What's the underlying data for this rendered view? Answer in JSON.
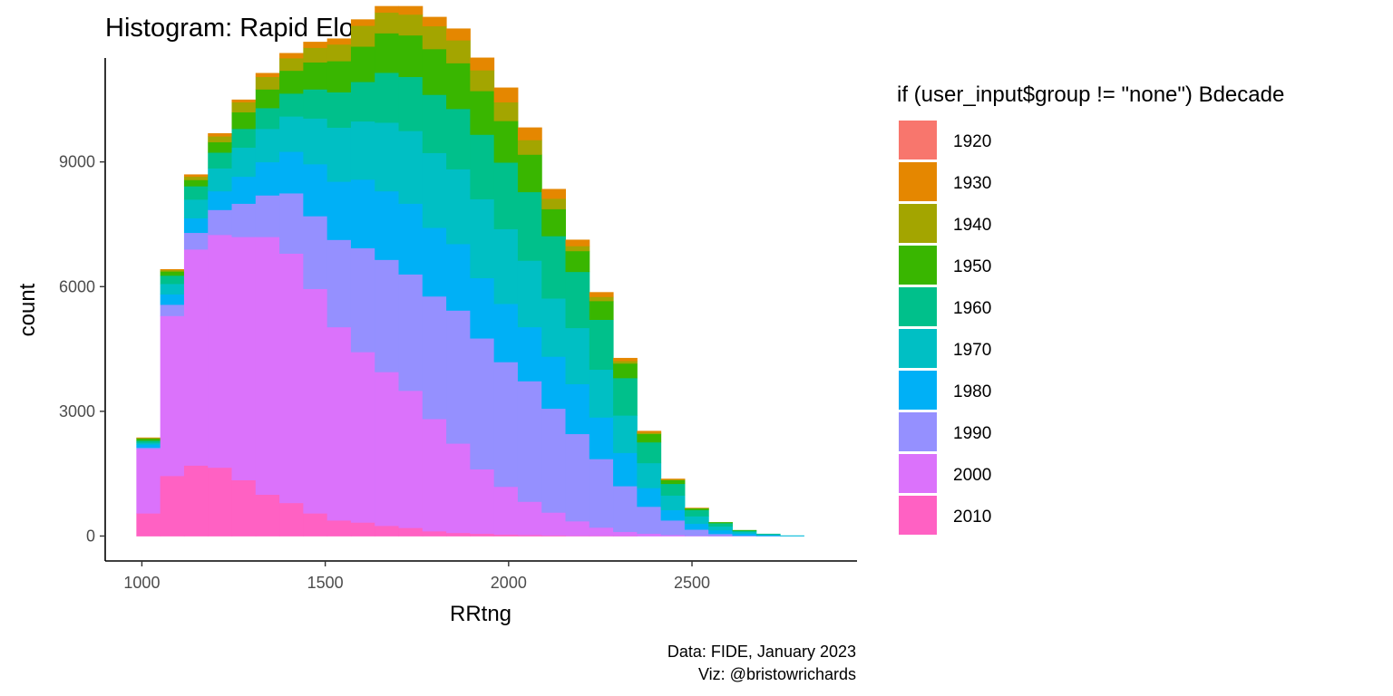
{
  "chart_data": {
    "type": "bar",
    "subtype": "stacked-histogram",
    "title": "Histogram: Rapid Elo",
    "xlabel": "RRtng",
    "ylabel": "count",
    "xlim": [
      900,
      2950
    ],
    "ylim": [
      -600,
      11500
    ],
    "xticks": [
      1000,
      1500,
      2000,
      2500
    ],
    "yticks": [
      0,
      3000,
      6000,
      9000
    ],
    "grid": false,
    "legend_position": "right",
    "legend_title": "if (user_input$group != \"none\") Bdecade",
    "bin_starts": [
      985,
      1050,
      1115,
      1180,
      1245,
      1310,
      1375,
      1440,
      1505,
      1570,
      1635,
      1700,
      1765,
      1830,
      1895,
      1960,
      2025,
      2090,
      2155,
      2220,
      2285,
      2350,
      2415,
      2480,
      2545,
      2610,
      2675,
      2740
    ],
    "bin_width": 65,
    "series": [
      {
        "name": "2010",
        "color": "#FF61C3",
        "values": [
          550,
          1450,
          1700,
          1650,
          1350,
          1000,
          800,
          550,
          380,
          330,
          250,
          200,
          120,
          80,
          60,
          40,
          30,
          20,
          10,
          8,
          5,
          0,
          0,
          0,
          0,
          0,
          0,
          0
        ]
      },
      {
        "name": "2000",
        "color": "#DB72FB",
        "values": [
          1550,
          3850,
          5200,
          5600,
          5850,
          6200,
          6000,
          5400,
          4650,
          4100,
          3700,
          3300,
          2700,
          2150,
          1550,
          1150,
          800,
          550,
          350,
          200,
          100,
          60,
          30,
          10,
          5,
          0,
          0,
          0
        ]
      },
      {
        "name": "1990",
        "color": "#9590FF",
        "values": [
          30,
          270,
          400,
          600,
          800,
          1000,
          1450,
          1750,
          2100,
          2500,
          2700,
          2800,
          2950,
          3200,
          3150,
          3000,
          2900,
          2500,
          2100,
          1650,
          1100,
          650,
          350,
          150,
          50,
          15,
          5,
          0
        ]
      },
      {
        "name": "1980",
        "color": "#00B0F6",
        "values": [
          80,
          250,
          350,
          450,
          650,
          800,
          1000,
          1250,
          1400,
          1650,
          1650,
          1700,
          1650,
          1600,
          1450,
          1400,
          1300,
          1250,
          1200,
          1000,
          800,
          450,
          250,
          140,
          90,
          50,
          20,
          10
        ]
      },
      {
        "name": "1970",
        "color": "#00BFC4",
        "values": [
          40,
          250,
          450,
          550,
          700,
          800,
          850,
          1100,
          1300,
          1400,
          1650,
          1750,
          1800,
          1800,
          1900,
          1800,
          1600,
          1400,
          1350,
          1150,
          900,
          600,
          350,
          180,
          90,
          40,
          20,
          5
        ]
      },
      {
        "name": "1960",
        "color": "#00C08B",
        "values": [
          50,
          200,
          320,
          380,
          450,
          500,
          550,
          700,
          850,
          950,
          1200,
          1300,
          1400,
          1450,
          1550,
          1600,
          1650,
          1500,
          1350,
          1200,
          900,
          500,
          280,
          150,
          80,
          30,
          10,
          0
        ]
      },
      {
        "name": "1950",
        "color": "#39B600",
        "values": [
          50,
          100,
          150,
          250,
          400,
          450,
          550,
          650,
          750,
          850,
          950,
          1000,
          1100,
          1100,
          1050,
          1000,
          900,
          650,
          500,
          450,
          350,
          200,
          90,
          40,
          20,
          10,
          0,
          0
        ]
      },
      {
        "name": "1940",
        "color": "#A3A500",
        "values": [
          15,
          35,
          80,
          140,
          240,
          300,
          300,
          350,
          400,
          500,
          500,
          500,
          550,
          550,
          500,
          450,
          350,
          250,
          120,
          100,
          60,
          30,
          15,
          5,
          0,
          0,
          0,
          0
        ]
      },
      {
        "name": "1930",
        "color": "#E58700",
        "values": [
          5,
          15,
          50,
          70,
          60,
          90,
          120,
          140,
          140,
          150,
          150,
          200,
          220,
          280,
          300,
          350,
          300,
          230,
          150,
          110,
          70,
          40,
          15,
          5,
          0,
          0,
          0,
          0
        ]
      },
      {
        "name": "1920",
        "color": "#F8766D",
        "values": [
          0,
          0,
          0,
          0,
          0,
          0,
          0,
          0,
          0,
          0,
          0,
          0,
          0,
          0,
          0,
          0,
          0,
          0,
          0,
          0,
          0,
          0,
          0,
          0,
          0,
          0,
          0,
          0
        ]
      }
    ],
    "legend_order": [
      "1920",
      "1930",
      "1940",
      "1950",
      "1960",
      "1970",
      "1980",
      "1990",
      "2000",
      "2010"
    ],
    "caption": [
      "Data: FIDE, January 2023",
      "Viz: @bristowrichards"
    ]
  }
}
